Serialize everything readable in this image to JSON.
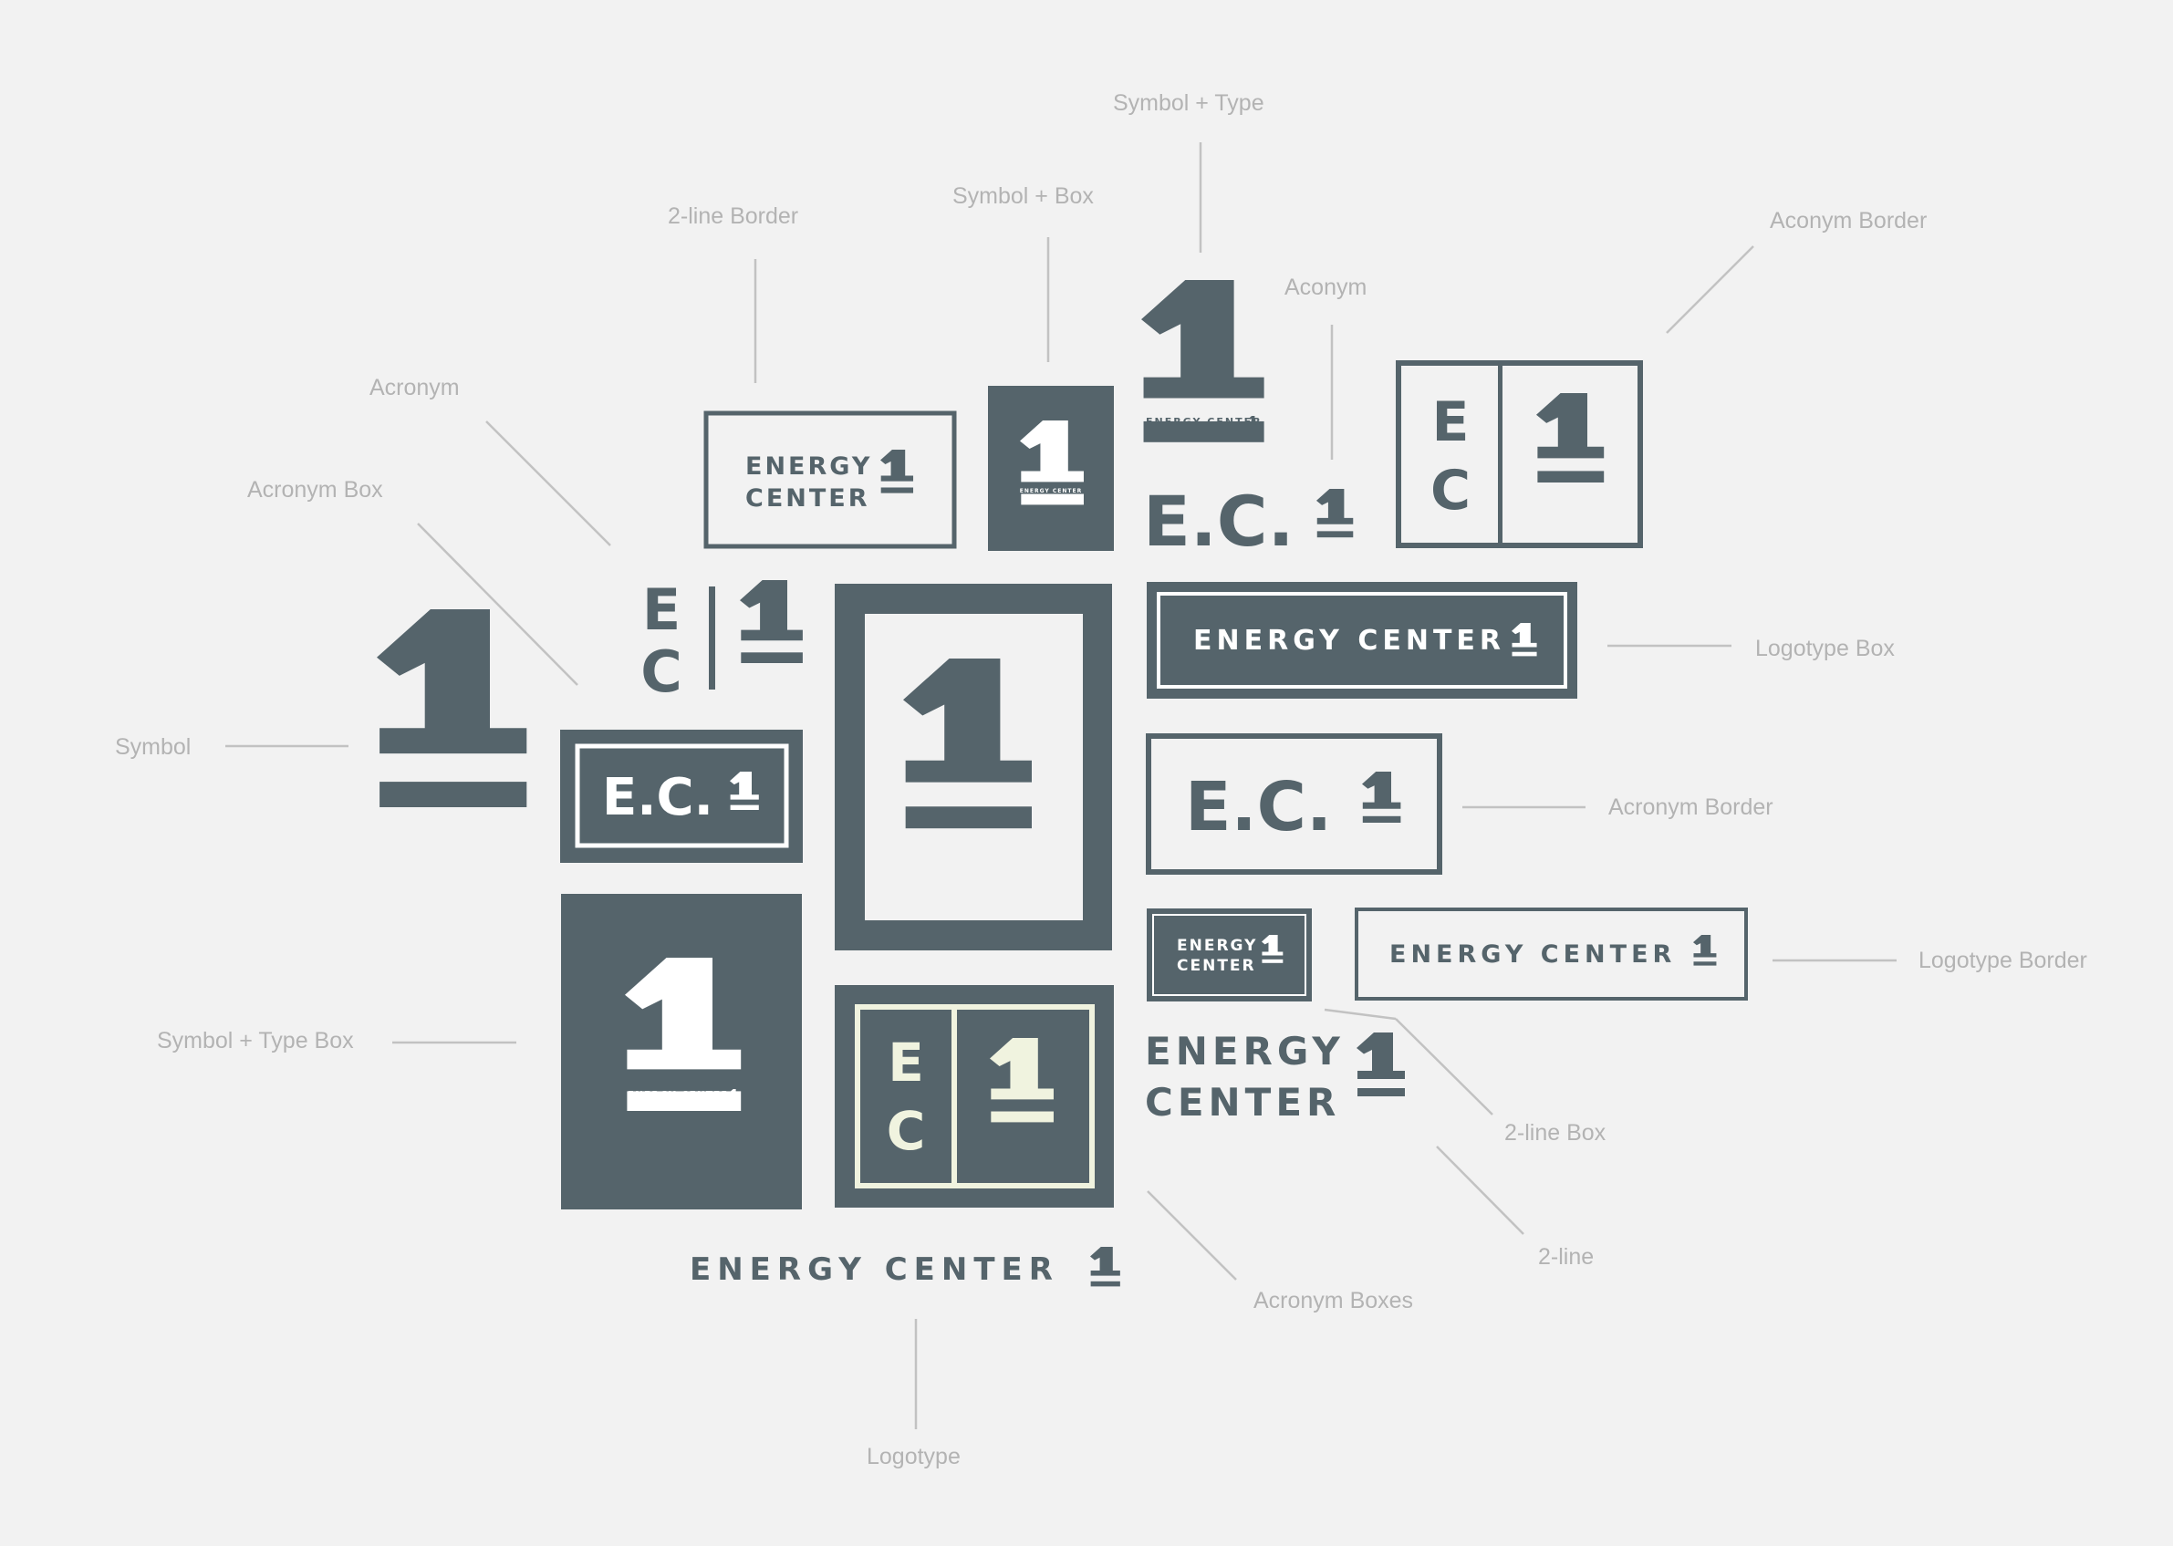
{
  "colors": {
    "background": "#f2f2f2",
    "brand": "#55646b",
    "cream": "#f0f3df",
    "white": "#ffffff",
    "label": "#b3b3b3",
    "leader": "#c2c2c2"
  },
  "brand": {
    "line1": "ENERGY",
    "line2": "CENTER",
    "full": "ENERGY CENTER",
    "acronym_dots": "E.C.",
    "letter_e": "E",
    "letter_c": "C"
  },
  "labels": {
    "symbol_type": "Symbol + Type",
    "symbol_box": "Symbol + Box",
    "two_line_border": "2-line Border",
    "acronym_top": "Aconym",
    "acronym_border_top": "Aconym Border",
    "acronym_left": "Acronym",
    "acronym_box": "Acronym Box",
    "symbol": "Symbol",
    "logotype_box": "Logotype Box",
    "acronym_border_right": "Acronym Border",
    "logotype_border": "Logotype Border",
    "symbol_type_box": "Symbol + Type Box",
    "two_line_box": "2-line Box",
    "two_line": "2-line",
    "acronym_boxes": "Acronym Boxes",
    "logotype": "Logotype"
  }
}
